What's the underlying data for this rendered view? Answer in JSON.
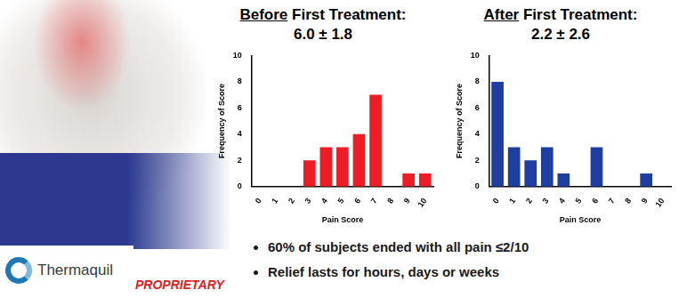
{
  "chart_data": [
    {
      "type": "bar",
      "title": "Before First Treatment:",
      "subtitle": "6.0 ± 1.8",
      "categories": [
        "0",
        "1",
        "2",
        "3",
        "4",
        "5",
        "6",
        "7",
        "8",
        "9",
        "10"
      ],
      "values": [
        0,
        0,
        0,
        2,
        3,
        3,
        4,
        7,
        0,
        1,
        1
      ],
      "color": "#ee1c25",
      "xlabel": "Pain Score",
      "ylabel": "Frequency of Score",
      "ylim": [
        0,
        10
      ],
      "yticks": [
        0,
        2,
        4,
        6,
        8,
        10
      ],
      "grid": false
    },
    {
      "type": "bar",
      "title": "After First Treatment:",
      "subtitle": "2.2 ± 2.6",
      "categories": [
        "0",
        "1",
        "2",
        "3",
        "4",
        "5",
        "6",
        "7",
        "8",
        "9",
        "10"
      ],
      "values": [
        8,
        3,
        2,
        3,
        1,
        0,
        3,
        0,
        0,
        1,
        0
      ],
      "color": "#1f3fa0",
      "xlabel": "Pain Score",
      "ylabel": "Frequency of Score",
      "ylim": [
        0,
        10
      ],
      "yticks": [
        0,
        2,
        4,
        6,
        8,
        10
      ],
      "grid": false
    }
  ],
  "bullets": [
    "60% of subjects ended with all pain ≤2/10",
    "Relief lasts for hours, days or weeks"
  ],
  "logo": "Thermaquil",
  "stamp": "PROPRIETARY"
}
